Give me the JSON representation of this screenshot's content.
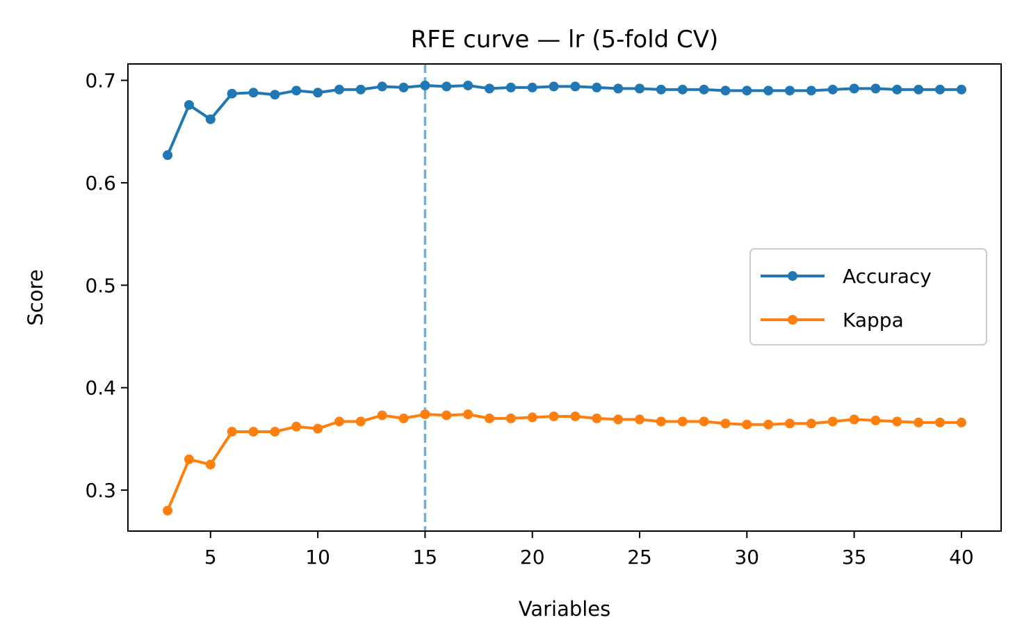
{
  "chart_data": {
    "type": "line",
    "title": "RFE curve — lr (5-fold CV)",
    "xlabel": "Variables",
    "ylabel": "Score",
    "xlim": [
      1.15,
      41.85
    ],
    "ylim": [
      0.26,
      0.716
    ],
    "xticks": [
      5,
      10,
      15,
      20,
      25,
      30,
      35,
      40
    ],
    "yticks": [
      0.3,
      0.4,
      0.5,
      0.6,
      0.7
    ],
    "ytick_labels": [
      "0.3",
      "0.4",
      "0.5",
      "0.6",
      "0.7"
    ],
    "grid": false,
    "legend_position": "center-right",
    "x": [
      3,
      4,
      5,
      6,
      7,
      8,
      9,
      10,
      11,
      12,
      13,
      14,
      15,
      16,
      17,
      18,
      19,
      20,
      21,
      22,
      23,
      24,
      25,
      26,
      27,
      28,
      29,
      30,
      31,
      32,
      33,
      34,
      35,
      36,
      37,
      38,
      39,
      40
    ],
    "series": [
      {
        "name": "Accuracy",
        "color": "#1f77b4",
        "values": [
          0.627,
          0.676,
          0.662,
          0.687,
          0.688,
          0.686,
          0.69,
          0.688,
          0.691,
          0.691,
          0.694,
          0.693,
          0.695,
          0.694,
          0.695,
          0.692,
          0.693,
          0.693,
          0.694,
          0.694,
          0.693,
          0.692,
          0.692,
          0.691,
          0.691,
          0.691,
          0.69,
          0.69,
          0.69,
          0.69,
          0.69,
          0.691,
          0.692,
          0.692,
          0.691,
          0.691,
          0.691,
          0.691
        ]
      },
      {
        "name": "Kappa",
        "color": "#ff7f0e",
        "values": [
          0.28,
          0.33,
          0.325,
          0.357,
          0.357,
          0.357,
          0.362,
          0.36,
          0.367,
          0.367,
          0.373,
          0.37,
          0.374,
          0.373,
          0.374,
          0.37,
          0.37,
          0.371,
          0.372,
          0.372,
          0.37,
          0.369,
          0.369,
          0.367,
          0.367,
          0.367,
          0.365,
          0.364,
          0.364,
          0.365,
          0.365,
          0.367,
          0.369,
          0.368,
          0.367,
          0.366,
          0.366,
          0.366
        ]
      }
    ],
    "reference_line": {
      "orientation": "vertical",
      "x": 15,
      "color": "#1f77b4",
      "style": "dashed"
    }
  }
}
